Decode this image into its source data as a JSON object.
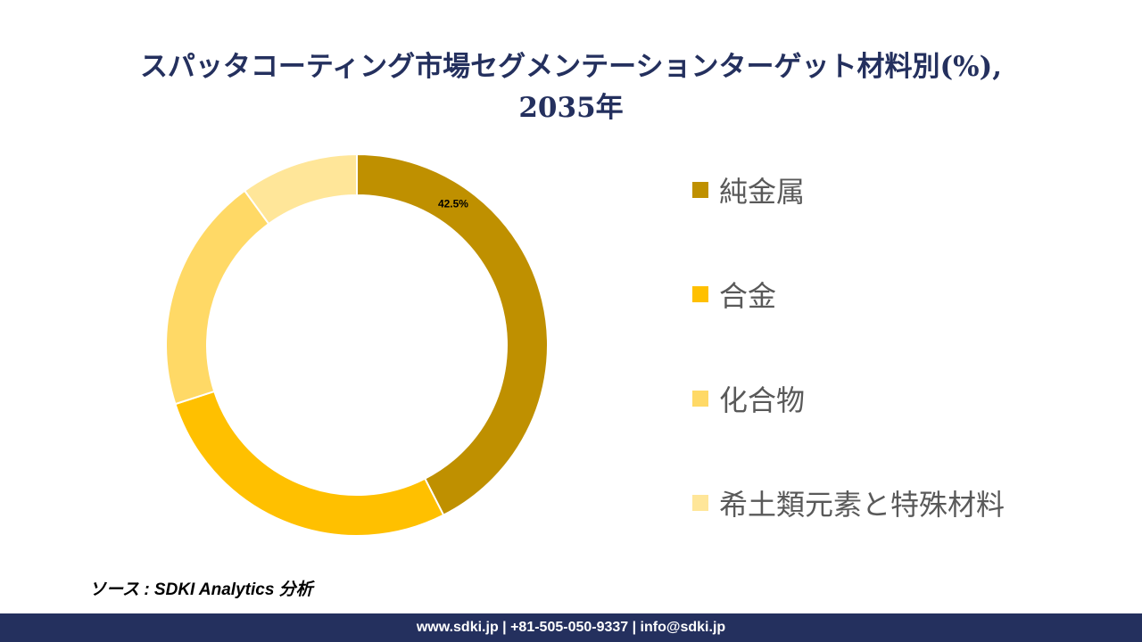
{
  "header": {
    "title_line1": "スパッタコーティング市場セグメンテーションターゲット材料別(%),",
    "title_line2": "2035年"
  },
  "chart_data": {
    "type": "pie",
    "variant": "donut",
    "categories": [
      "純金属",
      "合金",
      "化合物",
      "希土類元素と特殊材料"
    ],
    "values": [
      42.5,
      27.5,
      20.0,
      10.0
    ],
    "data_labels": [
      "42.5%",
      null,
      null,
      null
    ],
    "colors": [
      "#bf9000",
      "#ffc000",
      "#ffd966",
      "#ffe699"
    ],
    "legend_position": "right"
  },
  "source": {
    "text": "ソース : SDKI Analytics 分析"
  },
  "footer": {
    "text": "www.sdki.jp | +81-505-050-9337 | info@sdki.jp"
  }
}
